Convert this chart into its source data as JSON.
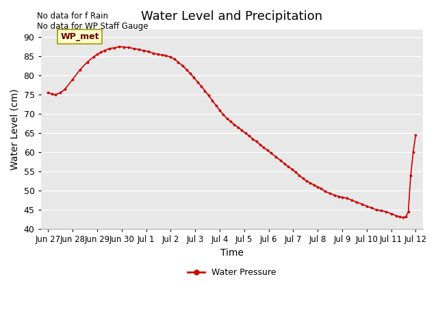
{
  "title": "Water Level and Precipitation",
  "xlabel": "Time",
  "ylabel": "Water Level (cm)",
  "ylim": [
    40,
    92
  ],
  "yticks": [
    40,
    45,
    50,
    55,
    60,
    65,
    70,
    75,
    80,
    85,
    90
  ],
  "no_data_text": "No data for f Rain\nNo data for WP Staff Gauge",
  "wp_met_label": "WP_met",
  "legend_label": "Water Pressure",
  "line_color": "#cc0000",
  "background_color": "#e8e8e8",
  "x_tick_labels": [
    "Jun 27",
    "Jun 28",
    "Jun 29",
    "Jun 30",
    "Jul 1",
    "Jul 2",
    "Jul 3",
    "Jul 4",
    "Jul 5",
    "Jul 6",
    "Jul 7",
    "Jul 8",
    "Jul 9",
    "Jul 10",
    "Jul 11",
    "Jul 12"
  ],
  "water_pressure_x": [
    0.0,
    0.15,
    0.3,
    0.5,
    0.7,
    1.0,
    1.3,
    1.6,
    1.85,
    2.0,
    2.15,
    2.3,
    2.5,
    2.7,
    2.9,
    3.1,
    3.3,
    3.5,
    3.7,
    3.9,
    4.1,
    4.3,
    4.5,
    4.65,
    4.8,
    5.0,
    5.15,
    5.3,
    5.5,
    5.65,
    5.8,
    5.95,
    6.1,
    6.25,
    6.4,
    6.55,
    6.7,
    6.85,
    7.0,
    7.15,
    7.3,
    7.45,
    7.6,
    7.75,
    7.9,
    8.05,
    8.2,
    8.35,
    8.5,
    8.65,
    8.8,
    8.95,
    9.1,
    9.3,
    9.5,
    9.65,
    9.8,
    9.95,
    10.1,
    10.25,
    10.4,
    10.55,
    10.7,
    10.85,
    11.0,
    11.15,
    11.3,
    11.5,
    11.7,
    11.85,
    12.0,
    12.2,
    12.4,
    12.6,
    12.8,
    13.0,
    13.2,
    13.4,
    13.6,
    13.8,
    14.0,
    14.2,
    14.35,
    14.5,
    14.6,
    14.7,
    14.8,
    14.9,
    15.0
  ],
  "water_pressure_y": [
    75.5,
    75.2,
    75.0,
    75.5,
    76.5,
    79.0,
    81.5,
    83.5,
    84.8,
    85.5,
    86.0,
    86.5,
    87.0,
    87.2,
    87.5,
    87.4,
    87.3,
    87.0,
    86.8,
    86.5,
    86.2,
    85.8,
    85.5,
    85.3,
    85.2,
    84.8,
    84.3,
    83.5,
    82.5,
    81.5,
    80.5,
    79.5,
    78.3,
    77.2,
    76.0,
    74.8,
    73.5,
    72.2,
    71.0,
    69.8,
    68.8,
    68.0,
    67.2,
    66.5,
    65.8,
    65.0,
    64.3,
    63.5,
    62.8,
    62.0,
    61.2,
    60.5,
    59.8,
    58.8,
    57.8,
    57.0,
    56.3,
    55.6,
    54.8,
    54.0,
    53.2,
    52.5,
    52.0,
    51.5,
    51.0,
    50.5,
    49.8,
    49.3,
    48.8,
    48.5,
    48.3,
    48.0,
    47.5,
    47.0,
    46.5,
    46.0,
    45.5,
    45.0,
    44.8,
    44.5,
    44.0,
    43.5,
    43.2,
    43.0,
    43.2,
    44.5,
    54.0,
    60.0,
    64.5
  ]
}
